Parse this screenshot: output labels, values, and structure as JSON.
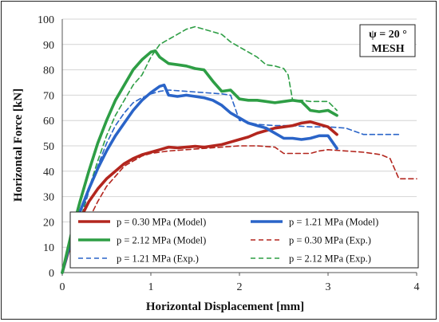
{
  "chart_data": {
    "type": "line",
    "title": "",
    "xlabel": "Horizontal Displacement [mm]",
    "ylabel": "Horizontal Force [kN]",
    "xlim": [
      0,
      4
    ],
    "ylim": [
      0,
      100
    ],
    "xticks": [
      0,
      1,
      2,
      3,
      4
    ],
    "yticks": [
      0,
      10,
      20,
      30,
      40,
      50,
      60,
      70,
      80,
      90,
      100
    ],
    "grid": "horizontal",
    "annotation": {
      "line1": "ψ = 20 °",
      "line2": "MESH"
    },
    "legend_placement": "bottom",
    "series": [
      {
        "name": "p = 0.30 MPa (Model)",
        "color": "#b3261e",
        "style": "solid",
        "x": [
          0,
          0.1,
          0.2,
          0.3,
          0.4,
          0.5,
          0.6,
          0.7,
          0.8,
          0.9,
          1.0,
          1.1,
          1.2,
          1.3,
          1.4,
          1.5,
          1.6,
          1.7,
          1.8,
          1.9,
          2.0,
          2.1,
          2.2,
          2.3,
          2.4,
          2.5,
          2.6,
          2.7,
          2.8,
          2.9,
          3.0,
          3.1
        ],
        "y": [
          0,
          12,
          21,
          28,
          33,
          37,
          40,
          43,
          45,
          46.5,
          47.5,
          48.5,
          49.5,
          49.2,
          49.5,
          49.8,
          49.5,
          50,
          50.5,
          51.5,
          52.5,
          53.5,
          55,
          56,
          57,
          57.5,
          58,
          59,
          59.5,
          58.5,
          57.5,
          54.5
        ]
      },
      {
        "name": "p = 1.21 MPa (Model)",
        "color": "#2a64c8",
        "style": "solid",
        "x": [
          0,
          0.1,
          0.2,
          0.3,
          0.4,
          0.5,
          0.6,
          0.7,
          0.8,
          0.9,
          1.0,
          1.1,
          1.15,
          1.2,
          1.3,
          1.4,
          1.5,
          1.6,
          1.7,
          1.8,
          1.9,
          2.0,
          2.1,
          2.2,
          2.3,
          2.4,
          2.5,
          2.6,
          2.7,
          2.8,
          2.9,
          3.0,
          3.05,
          3.1
        ],
        "y": [
          0,
          13,
          24,
          33,
          41,
          48,
          54,
          59,
          64,
          68,
          71,
          73.5,
          74,
          70,
          69.5,
          70,
          69.5,
          69,
          68,
          66,
          63,
          61,
          59,
          58,
          57,
          55,
          53,
          53,
          52.5,
          53,
          54,
          54,
          51.5,
          49
        ]
      },
      {
        "name": "p = 2.12 MPa (Model)",
        "color": "#2e9e45",
        "style": "solid",
        "x": [
          0,
          0.1,
          0.2,
          0.3,
          0.4,
          0.5,
          0.6,
          0.7,
          0.8,
          0.9,
          1.0,
          1.05,
          1.1,
          1.2,
          1.3,
          1.4,
          1.5,
          1.6,
          1.7,
          1.8,
          1.9,
          2.0,
          2.1,
          2.2,
          2.3,
          2.4,
          2.5,
          2.6,
          2.7,
          2.8,
          2.9,
          3.0,
          3.1
        ],
        "y": [
          0,
          15,
          28,
          40,
          51,
          60,
          68,
          74,
          80,
          84,
          87,
          87.5,
          85,
          82.5,
          82,
          81.5,
          80.5,
          80,
          75.5,
          71.5,
          72,
          68.5,
          68,
          68,
          67.5,
          67,
          67.5,
          68,
          67.5,
          64,
          63.5,
          64,
          62
        ]
      },
      {
        "name": "p = 0.30 MPa (Exp.)",
        "color": "#b3261e",
        "style": "dashed",
        "x": [
          0.2,
          0.3,
          0.4,
          0.5,
          0.6,
          0.7,
          0.8,
          0.9,
          1.0,
          1.2,
          1.4,
          1.6,
          1.8,
          2.0,
          2.2,
          2.4,
          2.5,
          2.6,
          2.8,
          2.9,
          3.0,
          3.2,
          3.4,
          3.6,
          3.7,
          3.8,
          4.0
        ],
        "y": [
          13,
          21,
          28,
          34,
          38,
          42,
          44,
          46,
          47,
          48,
          48.5,
          49,
          49.5,
          50,
          50,
          49.5,
          47,
          47,
          47,
          48,
          48.5,
          48,
          47.5,
          46.5,
          45,
          37,
          37
        ]
      },
      {
        "name": "p = 1.21 MPa (Exp.)",
        "color": "#2a64c8",
        "style": "dashed",
        "x": [
          0.2,
          0.3,
          0.4,
          0.5,
          0.6,
          0.7,
          0.8,
          0.9,
          1.0,
          1.1,
          1.2,
          1.4,
          1.6,
          1.8,
          1.9,
          2.0,
          2.2,
          2.4,
          2.6,
          2.8,
          3.0,
          3.2,
          3.4,
          3.6,
          3.8
        ],
        "y": [
          20,
          32,
          42,
          51,
          58,
          63,
          67,
          69,
          70.5,
          71.5,
          72,
          71.5,
          71,
          70.5,
          70,
          60,
          58.5,
          58,
          58,
          57.5,
          57.5,
          57,
          54.5,
          54.5,
          54.5
        ]
      },
      {
        "name": "p = 2.12 MPa (Exp.)",
        "color": "#2e9e45",
        "style": "dashed",
        "x": [
          0.15,
          0.2,
          0.3,
          0.4,
          0.5,
          0.6,
          0.7,
          0.8,
          0.9,
          1.0,
          1.1,
          1.2,
          1.3,
          1.4,
          1.5,
          1.6,
          1.7,
          1.8,
          1.9,
          2.0,
          2.1,
          2.2,
          2.3,
          2.4,
          2.5,
          2.55,
          2.6,
          2.7,
          2.8,
          3.0,
          3.1
        ],
        "y": [
          14,
          20,
          33,
          44,
          54,
          62,
          68,
          74,
          78,
          85,
          90,
          92,
          94,
          96,
          97,
          96,
          95,
          94,
          91,
          89,
          87,
          85,
          82,
          81.5,
          80.5,
          78,
          68,
          68,
          67.5,
          67.5,
          64
        ]
      }
    ]
  }
}
